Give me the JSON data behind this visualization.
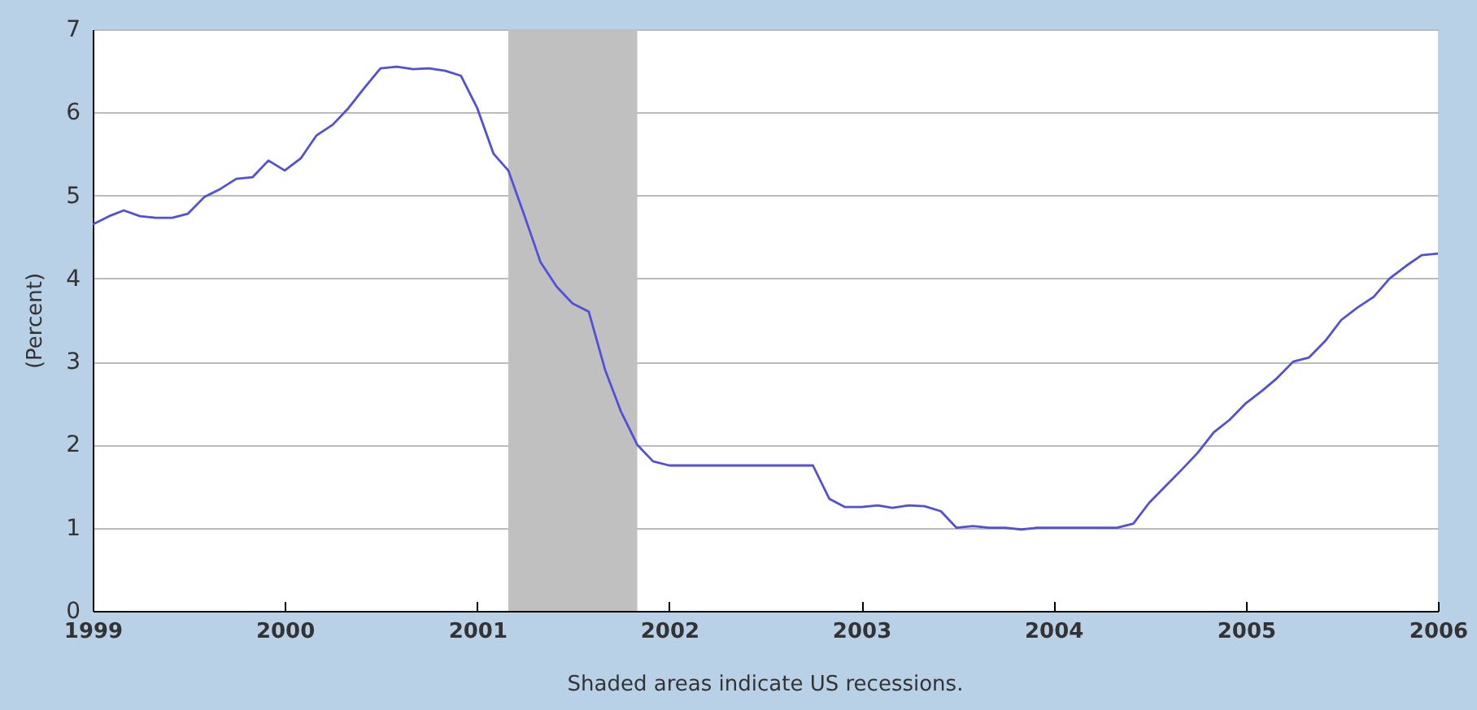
{
  "chart_data": {
    "type": "line",
    "ylabel": "(Percent)",
    "annotations": [
      "Shaded areas indicate US recessions."
    ],
    "x": [
      "1999-01",
      "1999-02",
      "1999-03",
      "1999-04",
      "1999-05",
      "1999-06",
      "1999-07",
      "1999-08",
      "1999-09",
      "1999-10",
      "1999-11",
      "1999-12",
      "2000-01",
      "2000-02",
      "2000-03",
      "2000-04",
      "2000-05",
      "2000-06",
      "2000-07",
      "2000-08",
      "2000-09",
      "2000-10",
      "2000-11",
      "2000-12",
      "2001-01",
      "2001-02",
      "2001-03",
      "2001-04",
      "2001-05",
      "2001-06",
      "2001-07",
      "2001-08",
      "2001-09",
      "2001-10",
      "2001-11",
      "2001-12",
      "2002-01",
      "2002-04",
      "2002-07",
      "2002-10",
      "2002-11",
      "2002-12",
      "2003-01",
      "2003-02",
      "2003-03",
      "2003-04",
      "2003-05",
      "2003-06",
      "2003-07",
      "2003-08",
      "2003-09",
      "2003-10",
      "2003-11",
      "2003-12",
      "2004-03",
      "2004-05",
      "2004-06",
      "2004-07",
      "2004-08",
      "2004-09",
      "2004-10",
      "2004-11",
      "2004-12",
      "2005-01",
      "2005-02",
      "2005-03",
      "2005-04",
      "2005-05",
      "2005-06",
      "2005-07",
      "2005-08",
      "2005-09",
      "2005-10",
      "2005-11",
      "2005-12",
      "2006-01"
    ],
    "series": [
      {
        "color": "#5050d8",
        "values": [
          4.65,
          4.75,
          4.82,
          4.75,
          4.73,
          4.73,
          4.78,
          4.98,
          5.08,
          5.2,
          5.22,
          5.42,
          5.3,
          5.45,
          5.72,
          5.85,
          6.05,
          6.3,
          6.53,
          6.55,
          6.52,
          6.53,
          6.5,
          6.44,
          6.05,
          5.5,
          5.3,
          4.75,
          4.2,
          3.9,
          3.7,
          3.6,
          2.9,
          2.4,
          2.0,
          1.8,
          1.75,
          1.75,
          1.75,
          1.75,
          1.35,
          1.25,
          1.25,
          1.27,
          1.24,
          1.27,
          1.26,
          1.2,
          1.0,
          1.02,
          1.0,
          1.0,
          0.98,
          1.0,
          1.0,
          1.0,
          1.05,
          1.3,
          1.5,
          1.7,
          1.9,
          2.15,
          2.3,
          2.5,
          2.65,
          2.8,
          3.0,
          3.05,
          3.25,
          3.5,
          3.65,
          3.78,
          4.0,
          4.15,
          4.28,
          4.3
        ]
      }
    ],
    "xlim": [
      "1999-01",
      "2006-01"
    ],
    "xticks": [
      "1999",
      "2000",
      "2001",
      "2002",
      "2003",
      "2004",
      "2005",
      "2006"
    ],
    "ylim": [
      0,
      7
    ],
    "yticks": [
      0,
      1,
      2,
      3,
      4,
      5,
      6,
      7
    ],
    "grid": "y",
    "bands": [
      {
        "axis": "x",
        "from": "2001-03",
        "to": "2001-11",
        "color": "#c0c0c0"
      }
    ]
  }
}
